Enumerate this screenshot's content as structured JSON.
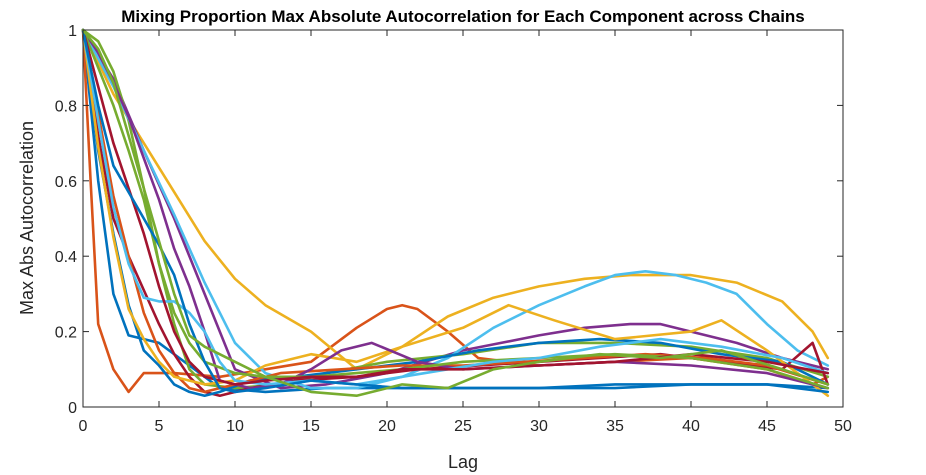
{
  "chart_data": {
    "type": "line",
    "title": "Mixing Proportion Max Absolute Autocorrelation for Each Component across Chains",
    "xlabel": "Lag",
    "ylabel": "Max Abs Autocorrelation",
    "xlim": [
      0,
      50
    ],
    "ylim": [
      0,
      1
    ],
    "xticks": [
      0,
      5,
      10,
      15,
      20,
      25,
      30,
      35,
      40,
      45,
      50
    ],
    "yticks": [
      0,
      0.2,
      0.4,
      0.6,
      0.8,
      1
    ],
    "ytick_labels": [
      "0",
      "0.2",
      "0.4",
      "0.6",
      "0.8",
      "1"
    ],
    "grid": false,
    "legend": "none",
    "series": [
      {
        "color": "#0072BD",
        "x": [
          0,
          1,
          2,
          3,
          5,
          7,
          9,
          12,
          16,
          20,
          25,
          30,
          35,
          40,
          45,
          49
        ],
        "y": [
          1,
          0.6,
          0.3,
          0.19,
          0.17,
          0.11,
          0.05,
          0.04,
          0.05,
          0.05,
          0.05,
          0.05,
          0.06,
          0.06,
          0.06,
          0.05
        ]
      },
      {
        "color": "#D95319",
        "x": [
          0,
          0.5,
          1,
          2,
          3,
          4,
          6,
          9,
          12,
          15,
          18,
          20,
          21,
          22,
          24,
          26,
          30,
          35,
          40,
          45,
          48,
          49
        ],
        "y": [
          1,
          0.6,
          0.22,
          0.1,
          0.04,
          0.09,
          0.09,
          0.08,
          0.1,
          0.12,
          0.21,
          0.26,
          0.27,
          0.26,
          0.2,
          0.13,
          0.11,
          0.12,
          0.13,
          0.1,
          0.06,
          0.08
        ]
      },
      {
        "color": "#EDB120",
        "x": [
          0,
          2,
          4,
          6,
          8,
          10,
          12,
          15,
          18,
          21,
          24,
          27,
          30,
          33,
          36,
          38,
          40,
          43,
          46,
          48,
          49
        ],
        "y": [
          1,
          0.83,
          0.7,
          0.57,
          0.44,
          0.34,
          0.27,
          0.2,
          0.1,
          0.16,
          0.24,
          0.29,
          0.32,
          0.34,
          0.35,
          0.35,
          0.35,
          0.33,
          0.28,
          0.2,
          0.13
        ]
      },
      {
        "color": "#7E2F8E",
        "x": [
          0,
          2,
          4,
          6,
          8,
          10,
          13,
          16,
          20,
          25,
          30,
          33,
          36,
          38,
          40,
          43,
          46,
          49
        ],
        "y": [
          1,
          0.87,
          0.68,
          0.5,
          0.3,
          0.1,
          0.05,
          0.06,
          0.09,
          0.15,
          0.19,
          0.21,
          0.22,
          0.22,
          0.2,
          0.17,
          0.13,
          0.1
        ]
      },
      {
        "color": "#77AC30",
        "x": [
          0,
          1,
          2,
          3,
          4,
          5,
          6,
          7,
          8,
          10,
          13,
          16,
          20,
          25,
          30,
          35,
          40,
          45,
          49
        ],
        "y": [
          1,
          0.97,
          0.89,
          0.76,
          0.58,
          0.38,
          0.22,
          0.1,
          0.06,
          0.05,
          0.06,
          0.09,
          0.12,
          0.14,
          0.17,
          0.17,
          0.16,
          0.13,
          0.08
        ]
      },
      {
        "color": "#4DBEEE",
        "x": [
          0,
          2,
          4,
          6,
          8,
          10,
          12,
          15,
          18,
          21,
          24,
          27,
          30,
          33,
          35,
          37,
          39,
          41,
          43,
          45,
          47,
          49
        ],
        "y": [
          1,
          0.85,
          0.68,
          0.51,
          0.33,
          0.17,
          0.09,
          0.05,
          0.05,
          0.08,
          0.13,
          0.21,
          0.27,
          0.32,
          0.35,
          0.36,
          0.35,
          0.33,
          0.3,
          0.22,
          0.15,
          0.11
        ]
      },
      {
        "color": "#A2142F",
        "x": [
          0,
          1,
          2,
          3,
          4,
          5,
          6,
          7,
          8,
          9,
          11,
          14,
          18,
          22,
          26,
          30,
          34,
          38,
          42,
          46,
          48,
          49
        ],
        "y": [
          1,
          0.72,
          0.5,
          0.4,
          0.31,
          0.22,
          0.14,
          0.08,
          0.04,
          0.03,
          0.05,
          0.07,
          0.08,
          0.1,
          0.11,
          0.12,
          0.13,
          0.14,
          0.12,
          0.1,
          0.17,
          0.06
        ]
      },
      {
        "color": "#0072BD",
        "x": [
          0,
          1,
          2,
          3,
          4,
          5,
          6,
          7,
          8,
          9,
          11,
          14,
          18,
          22,
          26,
          30,
          34,
          38,
          42,
          46,
          49
        ],
        "y": [
          1,
          0.68,
          0.46,
          0.27,
          0.15,
          0.11,
          0.06,
          0.04,
          0.03,
          0.04,
          0.07,
          0.08,
          0.1,
          0.12,
          0.15,
          0.17,
          0.18,
          0.17,
          0.14,
          0.12,
          0.06
        ]
      },
      {
        "color": "#D95319",
        "x": [
          0,
          1,
          2,
          3,
          4,
          5,
          6,
          7,
          8,
          10,
          13,
          17,
          21,
          25,
          29,
          33,
          37,
          41,
          45,
          49
        ],
        "y": [
          1,
          0.78,
          0.56,
          0.4,
          0.25,
          0.15,
          0.09,
          0.05,
          0.04,
          0.06,
          0.09,
          0.1,
          0.11,
          0.11,
          0.12,
          0.13,
          0.14,
          0.13,
          0.11,
          0.06
        ]
      },
      {
        "color": "#EDB120",
        "x": [
          0,
          1,
          2,
          3,
          4,
          5,
          6,
          7,
          8,
          10,
          12,
          15,
          18,
          21,
          25,
          28,
          31,
          35,
          40,
          42,
          45,
          49
        ],
        "y": [
          1,
          0.69,
          0.45,
          0.26,
          0.18,
          0.12,
          0.08,
          0.07,
          0.06,
          0.07,
          0.11,
          0.14,
          0.12,
          0.16,
          0.21,
          0.27,
          0.23,
          0.18,
          0.2,
          0.23,
          0.15,
          0.03
        ]
      },
      {
        "color": "#7E2F8E",
        "x": [
          0,
          1,
          2,
          3,
          4,
          5,
          6,
          7,
          8,
          9,
          11,
          13,
          15,
          17,
          19,
          22,
          25,
          30,
          35,
          40,
          45,
          49
        ],
        "y": [
          1,
          0.94,
          0.86,
          0.77,
          0.66,
          0.55,
          0.42,
          0.32,
          0.2,
          0.07,
          0.05,
          0.06,
          0.1,
          0.15,
          0.17,
          0.12,
          0.1,
          0.11,
          0.12,
          0.11,
          0.09,
          0.05
        ]
      },
      {
        "color": "#77AC30",
        "x": [
          0,
          1,
          2,
          3,
          4,
          5,
          6,
          7,
          8,
          10,
          12,
          15,
          18,
          21,
          25,
          30,
          35,
          40,
          45,
          49
        ],
        "y": [
          1,
          0.9,
          0.8,
          0.68,
          0.55,
          0.38,
          0.25,
          0.17,
          0.12,
          0.09,
          0.08,
          0.08,
          0.09,
          0.1,
          0.12,
          0.13,
          0.14,
          0.13,
          0.1,
          0.05
        ]
      },
      {
        "color": "#4DBEEE",
        "x": [
          0,
          1,
          2,
          3,
          4,
          5,
          6,
          7,
          8,
          9,
          10,
          12,
          15,
          18,
          21,
          24,
          27,
          30,
          34,
          38,
          42,
          46,
          49
        ],
        "y": [
          1,
          0.76,
          0.53,
          0.38,
          0.29,
          0.28,
          0.28,
          0.25,
          0.2,
          0.12,
          0.07,
          0.06,
          0.07,
          0.06,
          0.08,
          0.1,
          0.12,
          0.13,
          0.16,
          0.18,
          0.16,
          0.13,
          0.09
        ]
      },
      {
        "color": "#A2142F",
        "x": [
          0,
          1,
          2,
          3,
          4,
          5,
          6,
          7,
          8,
          10,
          12,
          15,
          18,
          21,
          25,
          30,
          35,
          40,
          45,
          49
        ],
        "y": [
          1,
          0.85,
          0.7,
          0.58,
          0.46,
          0.32,
          0.2,
          0.12,
          0.08,
          0.06,
          0.07,
          0.08,
          0.08,
          0.1,
          0.1,
          0.11,
          0.12,
          0.14,
          0.12,
          0.09
        ]
      },
      {
        "color": "#0072BD",
        "x": [
          0,
          1,
          2,
          3,
          4,
          5,
          6,
          7,
          8,
          9,
          10,
          12,
          15,
          18,
          21,
          25,
          30,
          35,
          40,
          45,
          49
        ],
        "y": [
          1,
          0.8,
          0.64,
          0.57,
          0.5,
          0.43,
          0.35,
          0.22,
          0.12,
          0.05,
          0.04,
          0.05,
          0.07,
          0.06,
          0.05,
          0.05,
          0.05,
          0.05,
          0.06,
          0.06,
          0.04
        ]
      },
      {
        "color": "#77AC30",
        "x": [
          0,
          1,
          2,
          3,
          4,
          5,
          6,
          7,
          8,
          10,
          12,
          15,
          18,
          21,
          24,
          27,
          30,
          34,
          38,
          42,
          46,
          49
        ],
        "y": [
          1,
          0.95,
          0.86,
          0.72,
          0.58,
          0.44,
          0.3,
          0.19,
          0.16,
          0.12,
          0.08,
          0.04,
          0.03,
          0.06,
          0.05,
          0.1,
          0.12,
          0.14,
          0.13,
          0.15,
          0.1,
          0.06
        ]
      }
    ]
  }
}
